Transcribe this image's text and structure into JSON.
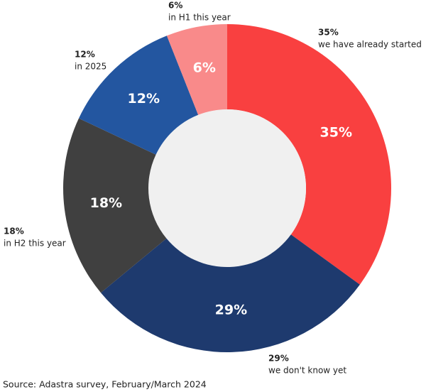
{
  "chart_data": {
    "type": "donut",
    "categories": [
      "we have already started",
      "we don't know yet",
      "in H2 this year",
      "in 2025",
      "in H1 this year"
    ],
    "values": [
      35,
      29,
      18,
      12,
      6
    ],
    "value_labels": [
      "35%",
      "29%",
      "18%",
      "12%",
      "6%"
    ],
    "colors": [
      "#f94040",
      "#1e3a6e",
      "#404040",
      "#2356a0",
      "#f98a8a"
    ],
    "source": "Source: Adastra survey, February/March 2024"
  }
}
